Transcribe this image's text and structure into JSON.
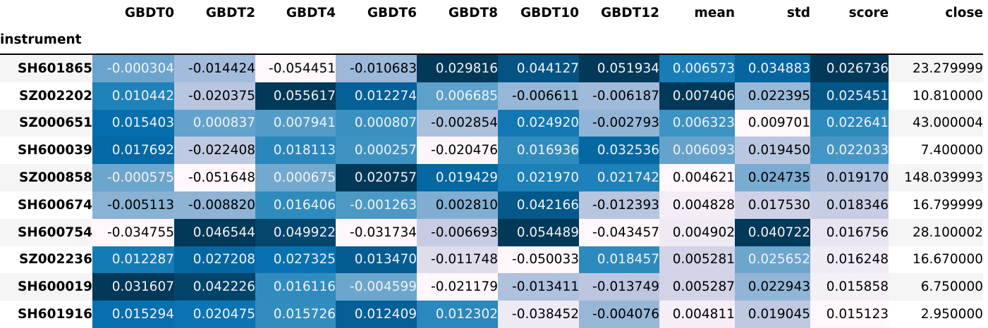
{
  "table": {
    "index_name": "instrument",
    "columns": [
      "GBDT0",
      "GBDT2",
      "GBDT4",
      "GBDT6",
      "GBDT8",
      "GBDT10",
      "GBDT12",
      "mean",
      "std",
      "score",
      "close"
    ],
    "rows": [
      {
        "instrument": "SH601865",
        "values": [
          "-0.000304",
          "-0.014424",
          "-0.054451",
          "-0.010683",
          "0.029816",
          "0.044127",
          "0.051934",
          "0.006573",
          "0.034883",
          "0.026736",
          "23.279999"
        ]
      },
      {
        "instrument": "SZ002202",
        "values": [
          "0.010442",
          "-0.020375",
          "0.055617",
          "0.012274",
          "0.006685",
          "-0.006611",
          "-0.006187",
          "0.007406",
          "0.022395",
          "0.025451",
          "10.810000"
        ]
      },
      {
        "instrument": "SZ000651",
        "values": [
          "0.015403",
          "0.000837",
          "0.007941",
          "0.000807",
          "-0.002854",
          "0.024920",
          "-0.002793",
          "0.006323",
          "0.009701",
          "0.022641",
          "43.000004"
        ]
      },
      {
        "instrument": "SH600039",
        "values": [
          "0.017692",
          "-0.022408",
          "0.018113",
          "0.000257",
          "-0.020476",
          "0.016936",
          "0.032536",
          "0.006093",
          "0.019450",
          "0.022033",
          "7.400000"
        ]
      },
      {
        "instrument": "SZ000858",
        "values": [
          "-0.000575",
          "-0.051648",
          "0.000675",
          "0.020757",
          "0.019429",
          "0.021970",
          "0.021742",
          "0.004621",
          "0.024735",
          "0.019170",
          "148.039993"
        ]
      },
      {
        "instrument": "SH600674",
        "values": [
          "-0.005113",
          "-0.008820",
          "0.016406",
          "-0.001263",
          "0.002810",
          "0.042166",
          "-0.012393",
          "0.004828",
          "0.017530",
          "0.018346",
          "16.799999"
        ]
      },
      {
        "instrument": "SH600754",
        "values": [
          "-0.034755",
          "0.046544",
          "0.049922",
          "-0.031734",
          "-0.006693",
          "0.054489",
          "-0.043457",
          "0.004902",
          "0.040722",
          "0.016756",
          "28.100002"
        ]
      },
      {
        "instrument": "SZ002236",
        "values": [
          "0.012287",
          "0.027208",
          "0.027325",
          "0.013470",
          "-0.011748",
          "-0.050033",
          "0.018457",
          "0.005281",
          "0.025652",
          "0.016248",
          "16.670000"
        ]
      },
      {
        "instrument": "SH600019",
        "values": [
          "0.031607",
          "0.042226",
          "0.016116",
          "-0.004599",
          "-0.021179",
          "-0.013411",
          "-0.013749",
          "0.005287",
          "0.022943",
          "0.015858",
          "6.750000"
        ]
      },
      {
        "instrument": "SH601916",
        "values": [
          "0.015294",
          "0.020475",
          "0.015726",
          "0.012409",
          "0.012302",
          "-0.038452",
          "-0.004076",
          "0.004811",
          "0.019045",
          "0.015123",
          "2.950000"
        ]
      }
    ]
  },
  "colors": {
    "palette": "PuBu",
    "gradient_columns": [
      "GBDT0",
      "GBDT2",
      "GBDT4",
      "GBDT6",
      "GBDT8",
      "GBDT10",
      "GBDT12",
      "mean",
      "std",
      "score"
    ],
    "dark_text_threshold": 0.5,
    "light_text": "#f1f1f1",
    "dark_text": "#000000",
    "row_stripe": "#f5f5f5"
  }
}
